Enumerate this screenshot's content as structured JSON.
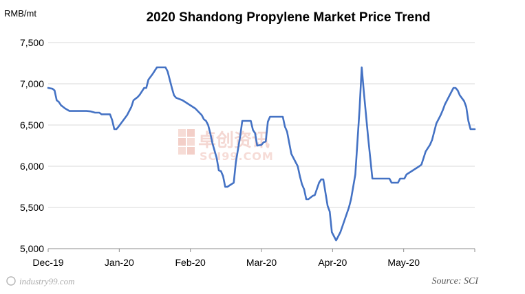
{
  "chart_data": {
    "type": "line",
    "title": "2020 Shandong  Propylene Market Price Trend",
    "ylabel": "RMB/mt",
    "xlabel": "",
    "ylim": [
      5000,
      7500
    ],
    "yticks": [
      5000,
      5500,
      6000,
      6500,
      7000,
      7500
    ],
    "ytick_labels": [
      "5,000",
      "5,500",
      "6,000",
      "6,500",
      "7,000",
      "7,500"
    ],
    "xticks": [
      "Dec-19",
      "Jan-20",
      "Feb-20",
      "Mar-20",
      "Apr-20",
      "May-20"
    ],
    "grid": "horizontal",
    "line_color": "#4472c4",
    "source": "Source: SCI",
    "watermark": {
      "name": "卓创资讯",
      "domain": "SCI99.COM"
    },
    "footer_watermark": "industry99.com",
    "series": [
      {
        "name": "",
        "points": [
          [
            0,
            6950
          ],
          [
            2,
            6940
          ],
          [
            3,
            6920
          ],
          [
            4,
            6800
          ],
          [
            5,
            6780
          ],
          [
            6,
            6740
          ],
          [
            7,
            6720
          ],
          [
            8,
            6700
          ],
          [
            10,
            6670
          ],
          [
            18,
            6670
          ],
          [
            20,
            6665
          ],
          [
            22,
            6650
          ],
          [
            24,
            6650
          ],
          [
            25,
            6630
          ],
          [
            27,
            6630
          ],
          [
            29,
            6630
          ],
          [
            30,
            6560
          ],
          [
            31,
            6450
          ],
          [
            32,
            6450
          ],
          [
            33,
            6480
          ],
          [
            35,
            6550
          ],
          [
            37,
            6620
          ],
          [
            39,
            6720
          ],
          [
            40,
            6800
          ],
          [
            42,
            6840
          ],
          [
            43,
            6870
          ],
          [
            45,
            6950
          ],
          [
            46,
            6950
          ],
          [
            47,
            7050
          ],
          [
            49,
            7120
          ],
          [
            51,
            7200
          ],
          [
            55,
            7200
          ],
          [
            56,
            7150
          ],
          [
            57,
            7050
          ],
          [
            58,
            6950
          ],
          [
            59,
            6860
          ],
          [
            60,
            6830
          ],
          [
            61,
            6820
          ],
          [
            63,
            6800
          ],
          [
            66,
            6750
          ],
          [
            69,
            6700
          ],
          [
            72,
            6620
          ],
          [
            73,
            6570
          ],
          [
            74,
            6550
          ],
          [
            75,
            6500
          ],
          [
            76,
            6400
          ],
          [
            77,
            6280
          ],
          [
            79,
            6100
          ],
          [
            80,
            5950
          ],
          [
            81,
            5940
          ],
          [
            82,
            5880
          ],
          [
            83,
            5750
          ],
          [
            84,
            5750
          ],
          [
            87,
            5800
          ],
          [
            88,
            6050
          ],
          [
            90,
            6360
          ],
          [
            91,
            6550
          ],
          [
            95,
            6550
          ],
          [
            96,
            6440
          ],
          [
            97,
            6400
          ],
          [
            98,
            6250
          ],
          [
            100,
            6260
          ],
          [
            101,
            6290
          ],
          [
            102,
            6300
          ],
          [
            103,
            6540
          ],
          [
            104,
            6600
          ],
          [
            110,
            6600
          ],
          [
            111,
            6480
          ],
          [
            112,
            6420
          ],
          [
            114,
            6150
          ],
          [
            116,
            6050
          ],
          [
            117,
            6000
          ],
          [
            118,
            5880
          ],
          [
            119,
            5780
          ],
          [
            120,
            5720
          ],
          [
            121,
            5600
          ],
          [
            122,
            5600
          ],
          [
            123,
            5620
          ],
          [
            124,
            5640
          ],
          [
            125,
            5650
          ],
          [
            127,
            5800
          ],
          [
            128,
            5840
          ],
          [
            129,
            5840
          ],
          [
            130,
            5680
          ],
          [
            131,
            5520
          ],
          [
            132,
            5450
          ],
          [
            133,
            5200
          ],
          [
            134,
            5150
          ],
          [
            135,
            5100
          ],
          [
            137,
            5200
          ],
          [
            139,
            5350
          ],
          [
            141,
            5500
          ],
          [
            142,
            5600
          ],
          [
            143,
            5750
          ],
          [
            144,
            5900
          ],
          [
            145,
            6300
          ],
          [
            146,
            6700
          ],
          [
            147,
            7200
          ],
          [
            148,
            6900
          ],
          [
            150,
            6350
          ],
          [
            151,
            6100
          ],
          [
            152,
            5850
          ],
          [
            160,
            5850
          ],
          [
            161,
            5800
          ],
          [
            164,
            5800
          ],
          [
            165,
            5850
          ],
          [
            167,
            5850
          ],
          [
            168,
            5900
          ],
          [
            171,
            5950
          ],
          [
            174,
            6000
          ],
          [
            175,
            6020
          ],
          [
            176,
            6100
          ],
          [
            177,
            6180
          ],
          [
            179,
            6260
          ],
          [
            180,
            6320
          ],
          [
            181,
            6420
          ],
          [
            182,
            6520
          ],
          [
            184,
            6620
          ],
          [
            185,
            6680
          ],
          [
            186,
            6750
          ],
          [
            188,
            6850
          ],
          [
            189,
            6900
          ],
          [
            190,
            6950
          ],
          [
            191,
            6950
          ],
          [
            192,
            6920
          ],
          [
            193,
            6860
          ],
          [
            195,
            6790
          ],
          [
            196,
            6720
          ],
          [
            197,
            6550
          ],
          [
            198,
            6450
          ],
          [
            200,
            6450
          ]
        ]
      }
    ]
  }
}
